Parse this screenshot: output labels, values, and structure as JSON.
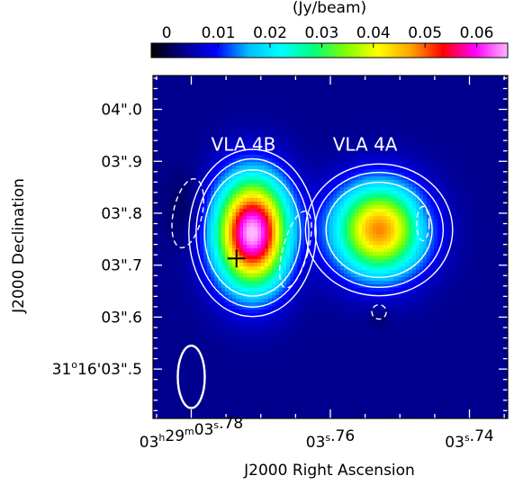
{
  "chart_data": {
    "type": "heatmap",
    "colorbar": {
      "label": "(Jy/beam)",
      "ticks": [
        0,
        0.01,
        0.02,
        0.03,
        0.04,
        0.05,
        0.06
      ],
      "tick_labels": [
        "0",
        "0.01",
        "0.02",
        "0.03",
        "0.04",
        "0.05",
        "0.06"
      ],
      "range": [
        -0.003,
        0.066
      ],
      "colors": [
        "#000000",
        "#00008b",
        "#0000ff",
        "#00bfff",
        "#00ffff",
        "#00ff7f",
        "#7fff00",
        "#ffff00",
        "#ffa500",
        "#ff0000",
        "#ff00ff",
        "#ffb6ff"
      ]
    },
    "xlabel": "J2000 Right Ascension",
    "ylabel": "J2000 Declination",
    "x_ticks": [
      {
        "value": 3.78,
        "label_parts": [
          "03",
          "h",
          "29",
          "m",
          "03",
          "s",
          ".78"
        ]
      },
      {
        "value": 3.76,
        "label_parts": [
          "",
          "",
          "",
          "",
          "03",
          "s",
          ".76"
        ]
      },
      {
        "value": 3.74,
        "label_parts": [
          "",
          "",
          "",
          "",
          "03",
          "s",
          ".74"
        ]
      }
    ],
    "xlim": [
      3.7855,
      3.7345
    ],
    "y_ticks": [
      {
        "value": 3.5,
        "label": "31°16'03\".5",
        "prefix": "31",
        "sup": "o",
        "suffix": "16'03\".5"
      },
      {
        "value": 3.6,
        "label": "03\".6"
      },
      {
        "value": 3.7,
        "label": "03\".7"
      },
      {
        "value": 3.8,
        "label": "03\".8"
      },
      {
        "value": 3.9,
        "label": "03\".9"
      },
      {
        "value": 4.0,
        "label": "04\".0"
      }
    ],
    "ylim": [
      3.405,
      4.065
    ],
    "sources": [
      {
        "name": "VLA 4B",
        "x": 3.7712,
        "y": 3.762,
        "peak": 0.063,
        "sigma_x": 0.0036,
        "sigma_y": 0.072
      },
      {
        "name": "VLA 4A",
        "x": 3.753,
        "y": 3.768,
        "peak": 0.045,
        "sigma_x": 0.0044,
        "sigma_y": 0.06
      }
    ],
    "contour_levels": [
      -0.0025,
      0.0025,
      0.005,
      0.01
    ],
    "annotations": [
      {
        "text": "VLA 4B",
        "x": 3.7725,
        "y": 3.92
      },
      {
        "text": "VLA 4A",
        "x": 3.755,
        "y": 3.92
      }
    ],
    "marker": {
      "symbol": "+",
      "x": 3.7735,
      "y": 3.713
    },
    "beam": {
      "x": 3.78,
      "y": 3.485,
      "major": 0.12,
      "minor": 0.052,
      "pa": 0
    }
  }
}
